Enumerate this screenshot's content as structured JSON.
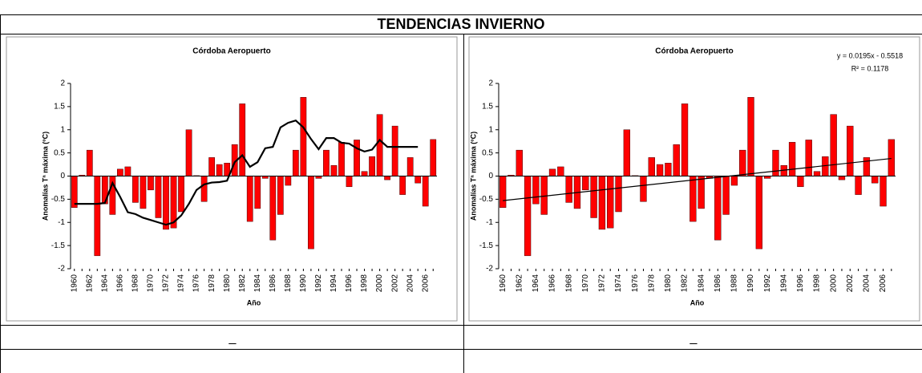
{
  "title": "TENDENCIAS INVIERNO",
  "footer_cells": [
    "_",
    "_"
  ],
  "chart_data": [
    {
      "type": "bar",
      "title": "Córdoba Aeropuerto",
      "xlabel": "Año",
      "ylabel": "Anomalías Tª máxima (ºC)",
      "categories": [
        "1960",
        null,
        "1962",
        null,
        "1964",
        null,
        "1966",
        null,
        "1968",
        null,
        "1970",
        null,
        "1972",
        null,
        "1974",
        null,
        "1976",
        null,
        "1978",
        null,
        "1980",
        null,
        "1982",
        null,
        "1984",
        null,
        "1986",
        null,
        "1988",
        null,
        "1990",
        null,
        "1992",
        null,
        "1994",
        null,
        "1996",
        null,
        "1998",
        null,
        "2000",
        null,
        "2002",
        null,
        "2004",
        null,
        "2006",
        null
      ],
      "values": [
        -0.68,
        0.02,
        0.56,
        -1.72,
        -0.6,
        -0.83,
        0.15,
        0.2,
        -0.57,
        -0.7,
        -0.3,
        -0.9,
        -1.15,
        -1.12,
        -0.77,
        1.0,
        0.01,
        -0.55,
        0.4,
        0.25,
        0.28,
        0.68,
        1.56,
        -0.98,
        -0.7,
        -0.05,
        -1.38,
        -0.83,
        -0.2,
        0.56,
        1.7,
        -1.57,
        -0.05,
        0.56,
        0.23,
        0.73,
        -0.23,
        0.78,
        0.1,
        0.42,
        1.33,
        -0.08,
        1.08,
        -0.4,
        0.4,
        -0.15,
        -0.65,
        0.79
      ],
      "color": "#ff0000",
      "moving_average": {
        "color": "#000000",
        "values": [
          -0.6,
          -0.6,
          -0.6,
          -0.6,
          -0.58,
          -0.15,
          -0.45,
          -0.78,
          -0.82,
          -0.9,
          -0.95,
          -1.0,
          -1.05,
          -1.0,
          -0.85,
          -0.6,
          -0.3,
          -0.18,
          -0.14,
          -0.13,
          -0.1,
          0.3,
          0.45,
          0.2,
          0.3,
          0.6,
          0.63,
          1.05,
          1.15,
          1.2,
          1.05,
          0.8,
          0.58,
          0.82,
          0.82,
          0.72,
          0.7,
          0.6,
          0.53,
          0.57,
          0.78,
          0.63,
          0.63,
          0.63,
          0.63,
          0.63,
          null,
          null
        ]
      },
      "ylim": [
        -2,
        2
      ],
      "yticks": [
        -2,
        -1.5,
        -1,
        -0.5,
        0,
        0.5,
        1,
        1.5,
        2
      ]
    },
    {
      "type": "bar",
      "title": "Córdoba Aeropuerto",
      "xlabel": "Año",
      "ylabel": "Anomalías Tª máxima (ºC)",
      "categories": [
        "1960",
        null,
        "1962",
        null,
        "1964",
        null,
        "1966",
        null,
        "1968",
        null,
        "1970",
        null,
        "1972",
        null,
        "1974",
        null,
        "1976",
        null,
        "1978",
        null,
        "1980",
        null,
        "1982",
        null,
        "1984",
        null,
        "1986",
        null,
        "1988",
        null,
        "1990",
        null,
        "1992",
        null,
        "1994",
        null,
        "1996",
        null,
        "1998",
        null,
        "2000",
        null,
        "2002",
        null,
        "2004",
        null,
        "2006",
        null
      ],
      "values": [
        -0.68,
        0.02,
        0.56,
        -1.72,
        -0.6,
        -0.83,
        0.15,
        0.2,
        -0.57,
        -0.7,
        -0.3,
        -0.9,
        -1.15,
        -1.12,
        -0.77,
        1.0,
        0.01,
        -0.55,
        0.4,
        0.25,
        0.28,
        0.68,
        1.56,
        -0.98,
        -0.7,
        -0.05,
        -1.38,
        -0.83,
        -0.2,
        0.56,
        1.7,
        -1.57,
        -0.05,
        0.56,
        0.23,
        0.73,
        -0.23,
        0.78,
        0.1,
        0.42,
        1.33,
        -0.08,
        1.08,
        -0.4,
        0.4,
        -0.15,
        -0.65,
        0.79
      ],
      "color": "#ff0000",
      "trendline": {
        "equation": "y = 0.0195x - 0.5518",
        "r_squared": "R² = 0.1178",
        "color": "#000000",
        "values": [
          -0.53,
          0.38
        ]
      },
      "ylim": [
        -2,
        2
      ],
      "yticks": [
        -2,
        -1.5,
        -1,
        -0.5,
        0,
        0.5,
        1,
        1.5,
        2
      ]
    }
  ]
}
